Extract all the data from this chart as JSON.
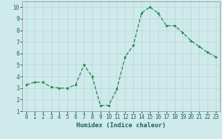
{
  "x": [
    0,
    1,
    2,
    3,
    4,
    5,
    6,
    7,
    8,
    9,
    10,
    11,
    12,
    13,
    14,
    15,
    16,
    17,
    18,
    19,
    20,
    21,
    22,
    23
  ],
  "y": [
    3.3,
    3.5,
    3.5,
    3.1,
    3.0,
    3.0,
    3.3,
    5.0,
    4.0,
    1.5,
    1.5,
    2.9,
    5.7,
    6.7,
    9.5,
    10.0,
    9.5,
    8.4,
    8.4,
    7.8,
    7.1,
    6.6,
    6.1,
    5.7
  ],
  "line_color": "#2e8b57",
  "marker": ".",
  "marker_size": 3,
  "line_width": 1.0,
  "xlabel": "Humidex (Indice chaleur)",
  "xlim": [
    -0.5,
    23.5
  ],
  "ylim": [
    1,
    10.5
  ],
  "yticks": [
    1,
    2,
    3,
    4,
    5,
    6,
    7,
    8,
    9,
    10
  ],
  "xticks": [
    0,
    1,
    2,
    3,
    4,
    5,
    6,
    7,
    8,
    9,
    10,
    11,
    12,
    13,
    14,
    15,
    16,
    17,
    18,
    19,
    20,
    21,
    22,
    23
  ],
  "bg_color": "#ceeaea",
  "grid_color": "#b8d4d4",
  "tick_fontsize": 5.5,
  "xlabel_fontsize": 6.5
}
